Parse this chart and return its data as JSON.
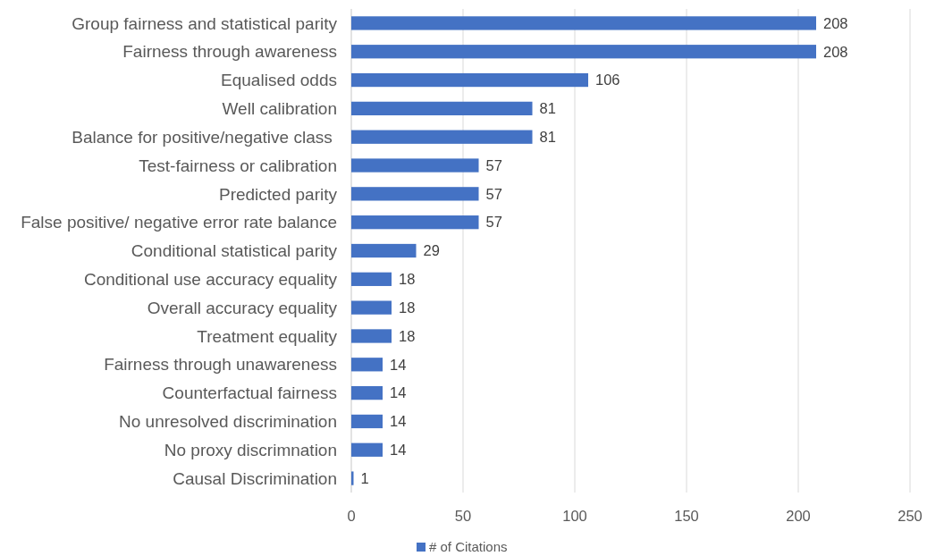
{
  "chart_data": {
    "type": "bar",
    "orientation": "horizontal",
    "categories": [
      "Group fairness and statistical parity",
      "Fairness through awareness",
      "Equalised odds",
      "Well calibration",
      "Balance for positive/negative class ",
      "Test-fairness or calibration",
      "Predicted parity",
      "False positive/ negative error rate balance",
      "Conditional statistical parity",
      "Conditional use accuracy equality",
      "Overall accuracy equality",
      "Treatment equality",
      "Fairness through unawareness",
      "Counterfactual fairness",
      "No unresolved discrimination",
      "No proxy discrimnation",
      "Causal Discrimination"
    ],
    "series": [
      {
        "name": "# of Citations",
        "color": "#4472c4",
        "values": [
          208,
          208,
          106,
          81,
          81,
          57,
          57,
          57,
          29,
          18,
          18,
          18,
          14,
          14,
          14,
          14,
          1
        ]
      }
    ],
    "xlim": [
      0,
      250
    ],
    "xticks": [
      0,
      50,
      100,
      150,
      200,
      250
    ],
    "grid": "x",
    "legend": "bottom",
    "data_labels": true
  }
}
